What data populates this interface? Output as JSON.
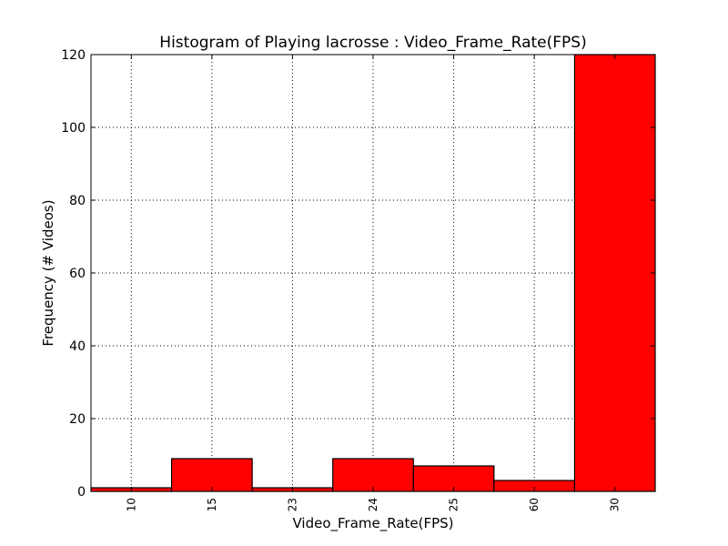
{
  "chart_data": {
    "type": "bar",
    "title": "Histogram of Playing lacrosse : Video_Frame_Rate(FPS)",
    "xlabel": "Video_Frame_Rate(FPS)",
    "ylabel": "Frequency (# Videos)",
    "categories": [
      "10",
      "15",
      "23",
      "24",
      "25",
      "60",
      "30"
    ],
    "values": [
      1,
      9,
      1,
      9,
      7,
      3,
      120
    ],
    "ylim": [
      0,
      120
    ],
    "yticks": [
      "0",
      "20",
      "40",
      "60",
      "80",
      "100",
      "120"
    ],
    "grid": true,
    "bar_color": "#ff0000",
    "edge_color": "#000000"
  }
}
